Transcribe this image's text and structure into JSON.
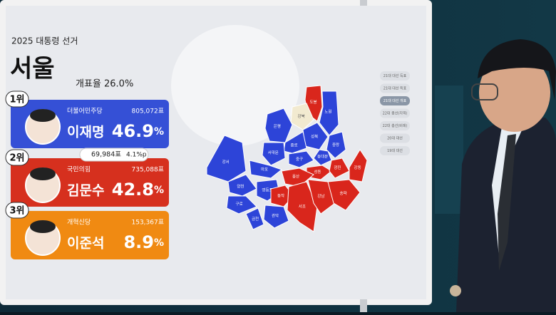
{
  "header": {
    "subtitle": "2025 대통령 선거",
    "region": "서울",
    "count_label": "개표율 26.0%"
  },
  "candidates": [
    {
      "rank": "1위",
      "party": "더불어민주당",
      "votes": "805,072표",
      "name": "이재명",
      "percent": "46.9",
      "percent_sign": "%",
      "color": "#3550d6"
    },
    {
      "rank": "2위",
      "party": "국민의힘",
      "votes": "735,088표",
      "name": "김문수",
      "percent": "42.8",
      "percent_sign": "%",
      "color": "#d6301e"
    },
    {
      "rank": "3위",
      "party": "개혁신당",
      "votes": "153,367표",
      "name": "이준석",
      "percent": "8.9",
      "percent_sign": "%",
      "color": "#f08a12"
    }
  ],
  "gap": {
    "votes": "69,984표",
    "percent": "4.1%p"
  },
  "menu": [
    "21대 대선 득표",
    "21대 대선 득표",
    "21대 대선 개표",
    "22대 총선(지역)",
    "22대 총선(비례)",
    "20대 대선",
    "19대 대선"
  ],
  "map": {
    "districts": [
      {
        "label": "도봉",
        "color": "#d9261c"
      },
      {
        "label": "노원",
        "color": "#2d44d8"
      },
      {
        "label": "강북",
        "color": "#f2ead0"
      },
      {
        "label": "은평",
        "color": "#2d44d8"
      },
      {
        "label": "성북",
        "color": "#2d44d8"
      },
      {
        "label": "중랑",
        "color": "#2d44d8"
      },
      {
        "label": "종로",
        "color": "#2d44d8"
      },
      {
        "label": "동대문",
        "color": "#2d44d8"
      },
      {
        "label": "서대문",
        "color": "#2d44d8"
      },
      {
        "label": "중구",
        "color": "#2d44d8"
      },
      {
        "label": "마포",
        "color": "#2d44d8"
      },
      {
        "label": "강서",
        "color": "#2d44d8"
      },
      {
        "label": "양천",
        "color": "#2d44d8"
      },
      {
        "label": "성동",
        "color": "#d9261c"
      },
      {
        "label": "광진",
        "color": "#d9261c"
      },
      {
        "label": "강동",
        "color": "#d9261c"
      },
      {
        "label": "용산",
        "color": "#d9261c"
      },
      {
        "label": "영등포",
        "color": "#2d44d8"
      },
      {
        "label": "동작",
        "color": "#d9261c"
      },
      {
        "label": "구로",
        "color": "#2d44d8"
      },
      {
        "label": "금천",
        "color": "#2d44d8"
      },
      {
        "label": "관악",
        "color": "#2d44d8"
      },
      {
        "label": "서초",
        "color": "#d9261c"
      },
      {
        "label": "강남",
        "color": "#d9261c"
      },
      {
        "label": "송파",
        "color": "#d9261c"
      }
    ]
  }
}
